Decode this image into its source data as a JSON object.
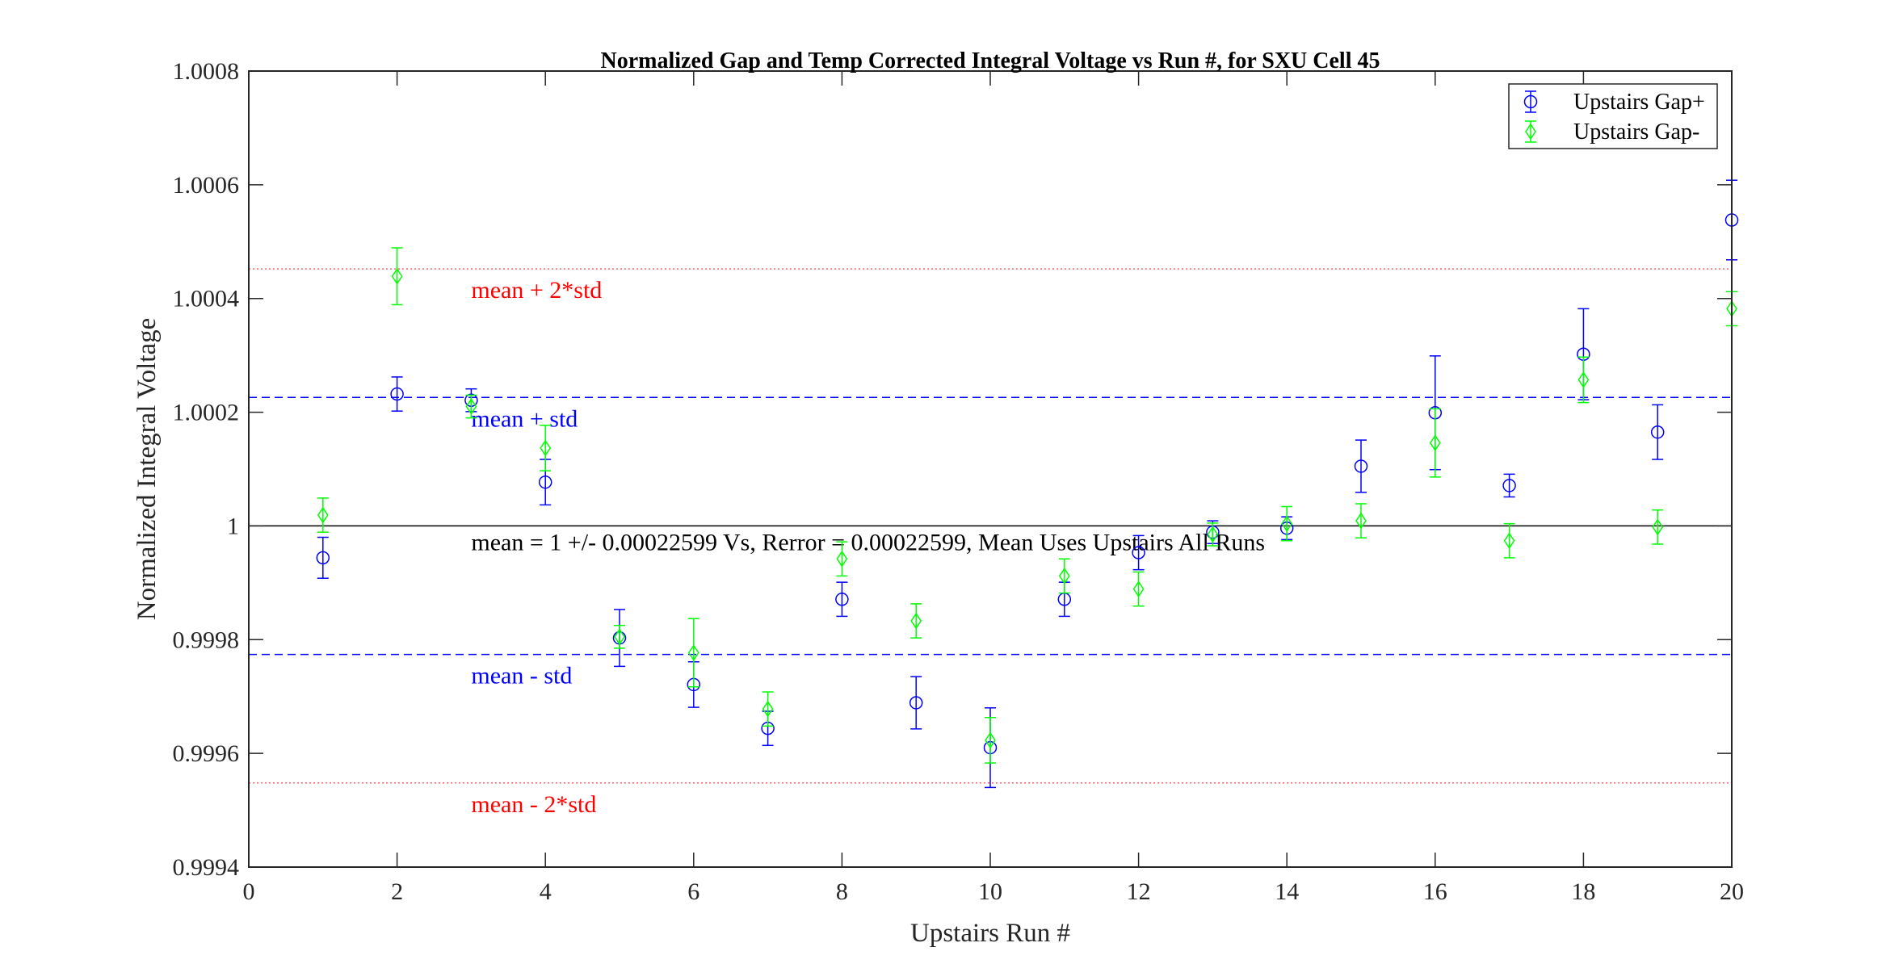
{
  "chart_data": {
    "type": "scatter",
    "title": "Normalized Gap and Temp Corrected Integral Voltage vs Run #, for SXU Cell 45",
    "xlabel": "Upstairs Run #",
    "ylabel": "Normalized Integral Voltage",
    "xlim": [
      0,
      20
    ],
    "ylim": [
      0.9994,
      1.0008
    ],
    "xticks": [
      0,
      2,
      4,
      6,
      8,
      10,
      12,
      14,
      16,
      18,
      20
    ],
    "yticks": [
      0.9994,
      0.9996,
      0.9998,
      1,
      1.0002,
      1.0004,
      1.0006,
      1.0008
    ],
    "ytick_labels": [
      "0.9994",
      "0.9996",
      "0.9998",
      "1",
      "1.0002",
      "1.0004",
      "1.0006",
      "1.0008"
    ],
    "legend_position": "top-right",
    "series": [
      {
        "name": "Upstairs Gap+",
        "color": "#0000ff",
        "marker": "circle",
        "x": [
          1,
          2,
          3,
          4,
          5,
          6,
          7,
          8,
          9,
          10,
          11,
          12,
          13,
          14,
          15,
          16,
          17,
          18,
          19,
          20
        ],
        "y": [
          0.999944,
          1.000232,
          1.000221,
          1.000077,
          0.999803,
          0.999721,
          0.999644,
          0.999871,
          0.999689,
          0.99961,
          0.999871,
          0.999953,
          0.999989,
          0.999996,
          1.000105,
          1.000199,
          1.000071,
          1.000302,
          1.000165,
          1.000538
        ],
        "err": [
          3.6e-05,
          3e-05,
          2e-05,
          4e-05,
          5e-05,
          4e-05,
          3e-05,
          3e-05,
          4.6e-05,
          7e-05,
          3e-05,
          3e-05,
          2e-05,
          2e-05,
          4.6e-05,
          0.0001,
          2e-05,
          8e-05,
          4.8e-05,
          7e-05
        ]
      },
      {
        "name": "Upstairs Gap-",
        "color": "#00ff00",
        "marker": "diamond",
        "x": [
          1,
          2,
          3,
          4,
          5,
          6,
          7,
          8,
          9,
          10,
          11,
          12,
          13,
          14,
          15,
          16,
          17,
          18,
          19,
          20
        ],
        "y": [
          1.000019,
          1.000439,
          1.00021,
          1.000137,
          0.999805,
          0.999777,
          0.999678,
          0.999942,
          0.999833,
          0.999623,
          0.999912,
          0.999889,
          0.999985,
          1.000004,
          1.000009,
          1.000146,
          0.999974,
          1.000257,
          0.999998,
          1.000382
        ],
        "err": [
          3e-05,
          5e-05,
          2e-05,
          4e-05,
          2e-05,
          6e-05,
          3e-05,
          3e-05,
          3e-05,
          4e-05,
          3e-05,
          3e-05,
          2e-05,
          3e-05,
          3e-05,
          6e-05,
          3e-05,
          4e-05,
          3e-05,
          3e-05
        ]
      }
    ],
    "reference_lines": [
      {
        "name": "mean-plus-2std",
        "y": 1.000452,
        "color": "#ff0000",
        "style": "dotted",
        "label": "mean + 2*std"
      },
      {
        "name": "mean-plus-std",
        "y": 1.000226,
        "color": "#0000ff",
        "style": "dashed",
        "label": "mean + std"
      },
      {
        "name": "mean",
        "y": 1.0,
        "color": "#000000",
        "style": "solid",
        "label": "mean = 1 +/- 0.00022599 Vs, Rerror = 0.00022599, Mean Uses Upstairs All Runs"
      },
      {
        "name": "mean-minus-std",
        "y": 0.999774,
        "color": "#0000ff",
        "style": "dashed",
        "label": "mean - std"
      },
      {
        "name": "mean-minus-2std",
        "y": 0.999548,
        "color": "#ff0000",
        "style": "dotted",
        "label": "mean - 2*std"
      }
    ]
  }
}
